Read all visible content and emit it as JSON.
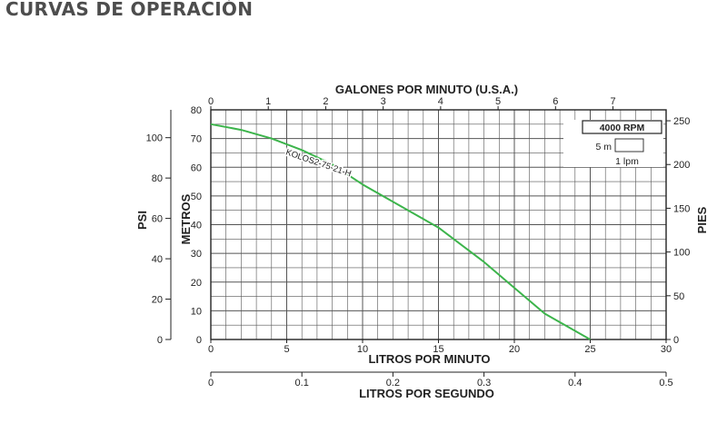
{
  "page": {
    "title": "CURVAS DE OPERACIÓN"
  },
  "chart_data": {
    "type": "line",
    "title": "",
    "x": {
      "label": "LITROS POR MINUTO",
      "range": [
        0,
        30
      ],
      "ticks": [
        0,
        5,
        10,
        15,
        20,
        25,
        30
      ]
    },
    "x_top": {
      "label": "GALONES POR MINUTO (U.S.A.)",
      "range": [
        0,
        7.925
      ],
      "ticks": [
        0,
        1,
        2,
        3,
        4,
        5,
        6,
        7
      ]
    },
    "x_bottom2": {
      "label": "LITROS POR SEGUNDO",
      "range": [
        0,
        0.5
      ],
      "ticks": [
        "0",
        "0.1",
        "0.2",
        "0.3",
        "0.4",
        "0.5"
      ]
    },
    "y": {
      "label": "METROS",
      "range": [
        0,
        80
      ],
      "ticks": [
        0,
        10,
        20,
        30,
        40,
        50,
        60,
        70,
        80
      ]
    },
    "y_left2": {
      "label": "PSI",
      "range": [
        0,
        113.8
      ],
      "ticks": [
        0,
        20,
        40,
        60,
        80,
        100
      ]
    },
    "y_right": {
      "label": "PIES",
      "range": [
        0,
        262.5
      ],
      "ticks": [
        0,
        50,
        100,
        150,
        200,
        250
      ]
    },
    "grid": true,
    "legend": {
      "rpm": "4000 RPM",
      "scale_vertical": "5 m",
      "scale_horizontal": "1 lpm"
    },
    "series": [
      {
        "name": "KOLOS2-75-21-H",
        "color": "#3cb44b",
        "x": [
          0,
          2,
          4,
          6,
          8,
          10,
          12,
          14,
          15,
          16,
          18,
          20,
          22,
          24,
          25
        ],
        "y": [
          75,
          73,
          70,
          66,
          61,
          54,
          48,
          42,
          39,
          35,
          27,
          18,
          9,
          3,
          0
        ]
      }
    ]
  }
}
